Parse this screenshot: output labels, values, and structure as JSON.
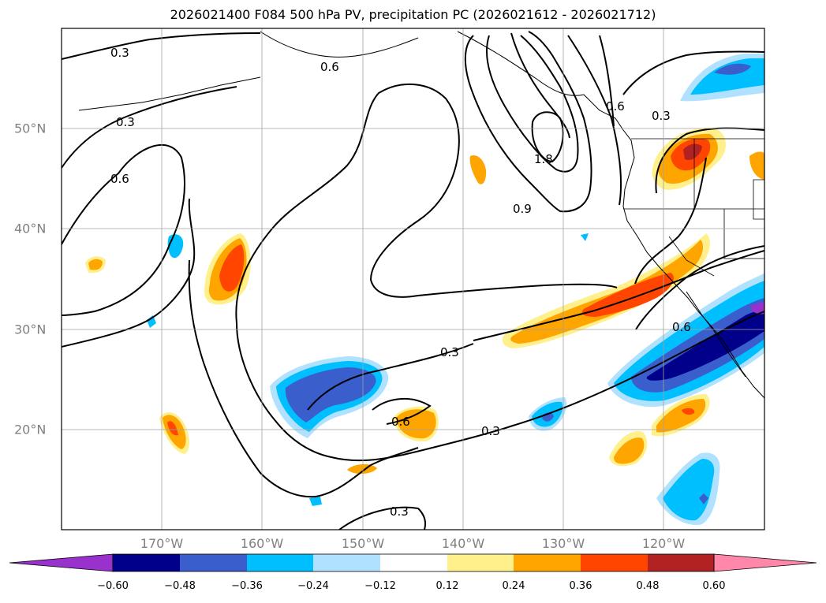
{
  "title": "2026021400 F084 500 hPa PV, precipitation PC (2026021612 - 2026021712)",
  "map": {
    "lon_range": [
      -180,
      -110
    ],
    "lat_range": [
      10,
      60
    ],
    "lon_labels": [
      "170°W",
      "160°W",
      "150°W",
      "140°W",
      "130°W",
      "120°W"
    ],
    "lat_labels": [
      "20°N",
      "30°N",
      "40°N",
      "50°N"
    ],
    "contour_labels": [
      "0.3",
      "0.3",
      "0.6",
      "0.6",
      "1.8",
      "0.9",
      "0.6",
      "0.3",
      "0.3",
      "0.6",
      "0.6",
      "0.3",
      "0.3"
    ]
  },
  "colorbar": {
    "tick_labels": [
      "−0.60",
      "−0.48",
      "−0.36",
      "−0.24",
      "−0.12",
      "0.12",
      "0.24",
      "0.36",
      "0.48",
      "0.60"
    ],
    "colors": [
      "#9932cc",
      "#00008b",
      "#3a5fcd",
      "#00bfff",
      "#b0e2ff",
      "#ffffff",
      "#fff08c",
      "#ffa500",
      "#ff4500",
      "#b22222",
      "#ff88aa"
    ]
  }
}
